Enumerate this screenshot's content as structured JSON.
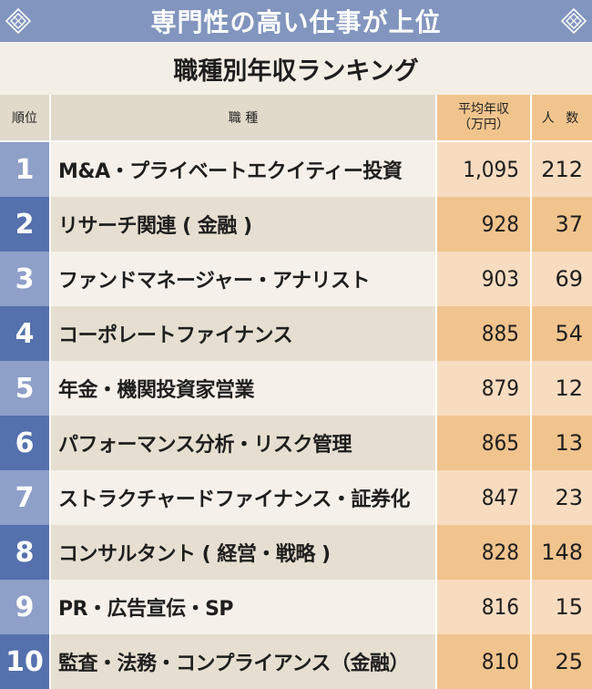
{
  "banner": {
    "title": "専門性の高い仕事が上位",
    "color": "#8295be"
  },
  "subtitle": "職種別年収ランキング",
  "table": {
    "headers": {
      "rank": "順位",
      "job": "職 種",
      "salary_line1": "平均年収",
      "salary_line2": "（万円）",
      "count": "人 数"
    },
    "rows": [
      {
        "rank": "1",
        "job": "M&A・プライベートエクイティー投資",
        "salary": "1,095",
        "count": "212"
      },
      {
        "rank": "2",
        "job": "リサーチ関連 ( 金融 )",
        "salary": "928",
        "count": "37"
      },
      {
        "rank": "3",
        "job": "ファンドマネージャー・アナリスト",
        "salary": "903",
        "count": "69"
      },
      {
        "rank": "4",
        "job": "コーポレートファイナンス",
        "salary": "885",
        "count": "54"
      },
      {
        "rank": "5",
        "job": "年金・機関投資家営業",
        "salary": "879",
        "count": "12"
      },
      {
        "rank": "6",
        "job": "パフォーマンス分析・リスク管理",
        "salary": "865",
        "count": "13"
      },
      {
        "rank": "7",
        "job": "ストラクチャードファイナンス・証券化",
        "salary": "847",
        "count": "23"
      },
      {
        "rank": "8",
        "job": "コンサルタント ( 経営・戦略 )",
        "salary": "828",
        "count": "148"
      },
      {
        "rank": "9",
        "job": "PR・広告宣伝・SP",
        "salary": "816",
        "count": "15"
      },
      {
        "rank": "10",
        "job": "監査・法務・コンプライアンス（金融）",
        "salary": "810",
        "count": "25"
      }
    ]
  },
  "icons": {
    "banner_left": "diamond-ornament-icon",
    "banner_right": "diamond-ornament-icon"
  },
  "colors": {
    "rank_dark": "#5470ad",
    "rank_light": "#8e9fc8",
    "salary_dark": "#f1c48e",
    "salary_light": "#f8dcc0"
  }
}
